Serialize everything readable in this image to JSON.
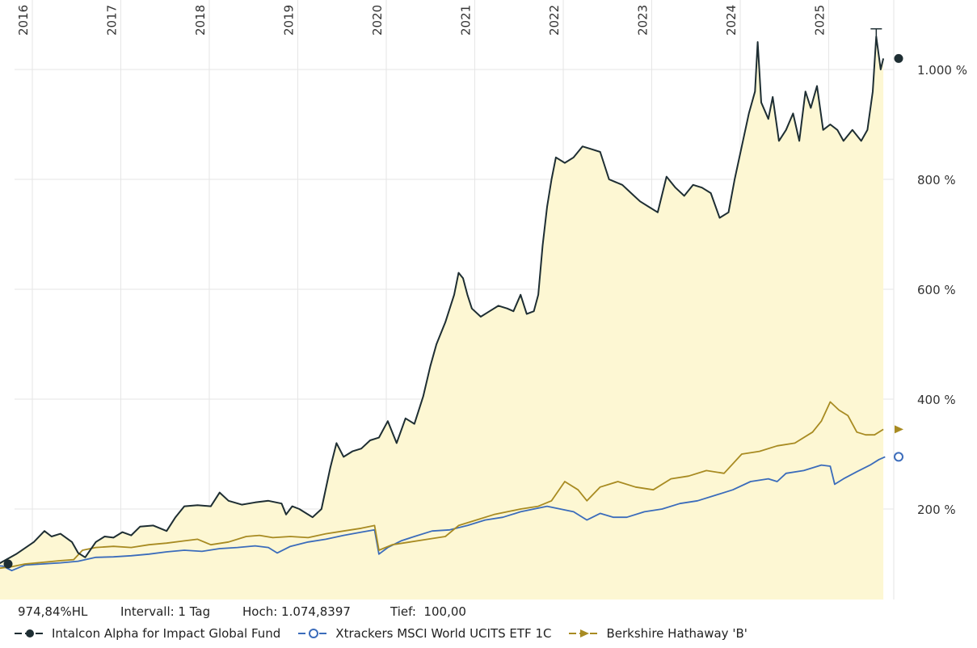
{
  "chart_data": {
    "type": "area",
    "years": [
      "2016",
      "2017",
      "2018",
      "2019",
      "2020",
      "2021",
      "2022",
      "2023",
      "2024",
      "2025"
    ],
    "y_ticks": [
      "200 %",
      "400 %",
      "600 %",
      "800 %",
      "1.000 %"
    ],
    "y_tick_values": [
      200,
      400,
      600,
      800,
      1000
    ],
    "ylim": [
      50,
      1120
    ],
    "xlim": [
      2015.55,
      2025.87
    ],
    "series": [
      {
        "name": "Intalcon Alpha for Impact Global Fund",
        "color": "#1e2e33",
        "fill": "#fdf7d3",
        "points": [
          [
            2015.58,
            100
          ],
          [
            2015.8,
            100
          ],
          [
            2016.0,
            118
          ],
          [
            2016.2,
            140
          ],
          [
            2016.32,
            160
          ],
          [
            2016.4,
            150
          ],
          [
            2016.5,
            155
          ],
          [
            2016.63,
            140
          ],
          [
            2016.7,
            120
          ],
          [
            2016.78,
            112
          ],
          [
            2016.9,
            140
          ],
          [
            2017.0,
            150
          ],
          [
            2017.1,
            148
          ],
          [
            2017.2,
            158
          ],
          [
            2017.3,
            152
          ],
          [
            2017.4,
            168
          ],
          [
            2017.55,
            170
          ],
          [
            2017.7,
            160
          ],
          [
            2017.8,
            185
          ],
          [
            2017.9,
            205
          ],
          [
            2018.05,
            207
          ],
          [
            2018.2,
            205
          ],
          [
            2018.3,
            230
          ],
          [
            2018.4,
            215
          ],
          [
            2018.55,
            208
          ],
          [
            2018.7,
            212
          ],
          [
            2018.85,
            215
          ],
          [
            2019.0,
            210
          ],
          [
            2019.05,
            190
          ],
          [
            2019.12,
            205
          ],
          [
            2019.2,
            200
          ],
          [
            2019.35,
            185
          ],
          [
            2019.45,
            200
          ],
          [
            2019.55,
            275
          ],
          [
            2019.62,
            320
          ],
          [
            2019.7,
            295
          ],
          [
            2019.8,
            305
          ],
          [
            2019.9,
            310
          ],
          [
            2020.0,
            325
          ],
          [
            2020.1,
            330
          ],
          [
            2020.2,
            360
          ],
          [
            2020.3,
            320
          ],
          [
            2020.4,
            365
          ],
          [
            2020.5,
            355
          ],
          [
            2020.6,
            405
          ],
          [
            2020.68,
            460
          ],
          [
            2020.75,
            500
          ],
          [
            2020.85,
            540
          ],
          [
            2020.95,
            590
          ],
          [
            2021.0,
            630
          ],
          [
            2021.05,
            620
          ],
          [
            2021.1,
            590
          ],
          [
            2021.15,
            565
          ],
          [
            2021.25,
            550
          ],
          [
            2021.35,
            560
          ],
          [
            2021.45,
            570
          ],
          [
            2021.55,
            565
          ],
          [
            2021.62,
            560
          ],
          [
            2021.7,
            590
          ],
          [
            2021.77,
            555
          ],
          [
            2021.85,
            560
          ],
          [
            2021.9,
            590
          ],
          [
            2021.95,
            680
          ],
          [
            2022.0,
            750
          ],
          [
            2022.05,
            800
          ],
          [
            2022.1,
            840
          ],
          [
            2022.2,
            830
          ],
          [
            2022.3,
            840
          ],
          [
            2022.4,
            860
          ],
          [
            2022.5,
            855
          ],
          [
            2022.6,
            850
          ],
          [
            2022.7,
            800
          ],
          [
            2022.85,
            790
          ],
          [
            2022.95,
            775
          ],
          [
            2023.05,
            760
          ],
          [
            2023.15,
            750
          ],
          [
            2023.25,
            740
          ],
          [
            2023.35,
            805
          ],
          [
            2023.45,
            785
          ],
          [
            2023.55,
            770
          ],
          [
            2023.65,
            790
          ],
          [
            2023.75,
            785
          ],
          [
            2023.85,
            775
          ],
          [
            2023.95,
            730
          ],
          [
            2024.05,
            740
          ],
          [
            2024.12,
            800
          ],
          [
            2024.2,
            860
          ],
          [
            2024.28,
            920
          ],
          [
            2024.35,
            960
          ],
          [
            2024.38,
            1050
          ],
          [
            2024.42,
            940
          ],
          [
            2024.5,
            910
          ],
          [
            2024.55,
            950
          ],
          [
            2024.62,
            870
          ],
          [
            2024.7,
            890
          ],
          [
            2024.78,
            920
          ],
          [
            2024.85,
            870
          ],
          [
            2024.92,
            960
          ],
          [
            2024.98,
            930
          ],
          [
            2025.05,
            970
          ],
          [
            2025.12,
            890
          ],
          [
            2025.2,
            900
          ],
          [
            2025.28,
            890
          ],
          [
            2025.35,
            870
          ],
          [
            2025.45,
            890
          ],
          [
            2025.55,
            870
          ],
          [
            2025.62,
            890
          ],
          [
            2025.68,
            960
          ],
          [
            2025.72,
            1060
          ],
          [
            2025.77,
            1000
          ],
          [
            2025.8,
            1020
          ]
        ]
      },
      {
        "name": "Xtrackers MSCI World UCITS ETF 1C",
        "color": "#3b6cbb",
        "points": [
          [
            2015.58,
            100
          ],
          [
            2015.85,
            96
          ],
          [
            2015.95,
            88
          ],
          [
            2016.1,
            98
          ],
          [
            2016.3,
            100
          ],
          [
            2016.5,
            102
          ],
          [
            2016.7,
            105
          ],
          [
            2016.9,
            112
          ],
          [
            2017.1,
            113
          ],
          [
            2017.3,
            115
          ],
          [
            2017.5,
            118
          ],
          [
            2017.7,
            122
          ],
          [
            2017.9,
            125
          ],
          [
            2018.1,
            123
          ],
          [
            2018.3,
            128
          ],
          [
            2018.5,
            130
          ],
          [
            2018.7,
            133
          ],
          [
            2018.85,
            130
          ],
          [
            2018.95,
            120
          ],
          [
            2019.1,
            132
          ],
          [
            2019.3,
            140
          ],
          [
            2019.5,
            145
          ],
          [
            2019.7,
            152
          ],
          [
            2019.9,
            158
          ],
          [
            2020.05,
            162
          ],
          [
            2020.1,
            118
          ],
          [
            2020.2,
            130
          ],
          [
            2020.35,
            142
          ],
          [
            2020.5,
            150
          ],
          [
            2020.7,
            160
          ],
          [
            2020.9,
            162
          ],
          [
            2021.1,
            170
          ],
          [
            2021.3,
            180
          ],
          [
            2021.5,
            185
          ],
          [
            2021.7,
            195
          ],
          [
            2021.85,
            200
          ],
          [
            2022.0,
            205
          ],
          [
            2022.15,
            200
          ],
          [
            2022.3,
            195
          ],
          [
            2022.45,
            180
          ],
          [
            2022.6,
            192
          ],
          [
            2022.75,
            185
          ],
          [
            2022.9,
            185
          ],
          [
            2023.1,
            195
          ],
          [
            2023.3,
            200
          ],
          [
            2023.5,
            210
          ],
          [
            2023.7,
            215
          ],
          [
            2023.9,
            225
          ],
          [
            2024.1,
            235
          ],
          [
            2024.3,
            250
          ],
          [
            2024.5,
            255
          ],
          [
            2024.6,
            250
          ],
          [
            2024.7,
            265
          ],
          [
            2024.9,
            270
          ],
          [
            2025.1,
            280
          ],
          [
            2025.2,
            278
          ],
          [
            2025.25,
            245
          ],
          [
            2025.35,
            255
          ],
          [
            2025.5,
            268
          ],
          [
            2025.65,
            280
          ],
          [
            2025.75,
            290
          ],
          [
            2025.82,
            295
          ]
        ]
      },
      {
        "name": "Berkshire Hathaway 'B'",
        "color": "#a88b22",
        "points": [
          [
            2015.58,
            100
          ],
          [
            2015.8,
            92
          ],
          [
            2015.95,
            95
          ],
          [
            2016.1,
            100
          ],
          [
            2016.3,
            103
          ],
          [
            2016.5,
            106
          ],
          [
            2016.65,
            108
          ],
          [
            2016.75,
            125
          ],
          [
            2016.9,
            130
          ],
          [
            2017.1,
            132
          ],
          [
            2017.3,
            130
          ],
          [
            2017.5,
            135
          ],
          [
            2017.7,
            138
          ],
          [
            2017.9,
            142
          ],
          [
            2018.05,
            145
          ],
          [
            2018.2,
            135
          ],
          [
            2018.4,
            140
          ],
          [
            2018.6,
            150
          ],
          [
            2018.75,
            152
          ],
          [
            2018.9,
            148
          ],
          [
            2019.1,
            150
          ],
          [
            2019.3,
            148
          ],
          [
            2019.5,
            155
          ],
          [
            2019.7,
            160
          ],
          [
            2019.9,
            165
          ],
          [
            2020.05,
            170
          ],
          [
            2020.1,
            125
          ],
          [
            2020.25,
            135
          ],
          [
            2020.45,
            140
          ],
          [
            2020.65,
            145
          ],
          [
            2020.85,
            150
          ],
          [
            2021.0,
            170
          ],
          [
            2021.2,
            180
          ],
          [
            2021.4,
            190
          ],
          [
            2021.55,
            195
          ],
          [
            2021.7,
            200
          ],
          [
            2021.9,
            205
          ],
          [
            2022.05,
            215
          ],
          [
            2022.2,
            250
          ],
          [
            2022.35,
            235
          ],
          [
            2022.45,
            215
          ],
          [
            2022.6,
            240
          ],
          [
            2022.8,
            250
          ],
          [
            2023.0,
            240
          ],
          [
            2023.2,
            235
          ],
          [
            2023.4,
            255
          ],
          [
            2023.6,
            260
          ],
          [
            2023.8,
            270
          ],
          [
            2024.0,
            265
          ],
          [
            2024.2,
            300
          ],
          [
            2024.4,
            305
          ],
          [
            2024.6,
            315
          ],
          [
            2024.8,
            320
          ],
          [
            2025.0,
            340
          ],
          [
            2025.1,
            360
          ],
          [
            2025.2,
            395
          ],
          [
            2025.3,
            380
          ],
          [
            2025.4,
            370
          ],
          [
            2025.5,
            340
          ],
          [
            2025.6,
            335
          ],
          [
            2025.7,
            335
          ],
          [
            2025.8,
            345
          ]
        ]
      }
    ]
  },
  "info": {
    "hl": "974,84%HL",
    "interval": "Intervall: 1 Tag",
    "high": "Hoch: 1.074,8397",
    "low": "Tief:  100,00"
  },
  "legend": [
    {
      "label": "Intalcon Alpha for Impact Global Fund",
      "color": "#1e2e33",
      "marker": "circle-filled"
    },
    {
      "label": "Xtrackers MSCI World UCITS ETF 1C",
      "color": "#3b6cbb",
      "marker": "circle-open"
    },
    {
      "label": "Berkshire Hathaway 'B'",
      "color": "#a88b22",
      "marker": "triangle"
    }
  ]
}
